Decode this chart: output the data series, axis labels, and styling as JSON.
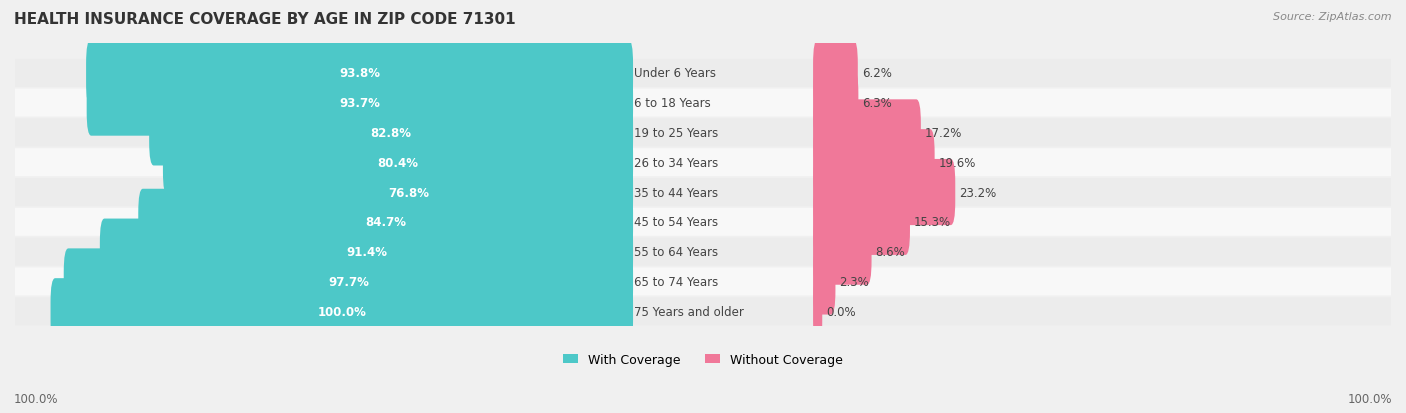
{
  "title": "HEALTH INSURANCE COVERAGE BY AGE IN ZIP CODE 71301",
  "source": "Source: ZipAtlas.com",
  "categories": [
    "Under 6 Years",
    "6 to 18 Years",
    "19 to 25 Years",
    "26 to 34 Years",
    "35 to 44 Years",
    "45 to 54 Years",
    "55 to 64 Years",
    "65 to 74 Years",
    "75 Years and older"
  ],
  "with_coverage": [
    93.8,
    93.7,
    82.8,
    80.4,
    76.8,
    84.7,
    91.4,
    97.7,
    100.0
  ],
  "without_coverage": [
    6.2,
    6.3,
    17.2,
    19.6,
    23.2,
    15.3,
    8.6,
    2.3,
    0.0
  ],
  "color_with": "#4DC8C8",
  "color_without": "#F07899",
  "bg_color": "#f0f0f0",
  "row_bg_color": "#ffffff",
  "title_fontsize": 11,
  "label_fontsize": 8.5,
  "legend_fontsize": 9,
  "source_fontsize": 8
}
